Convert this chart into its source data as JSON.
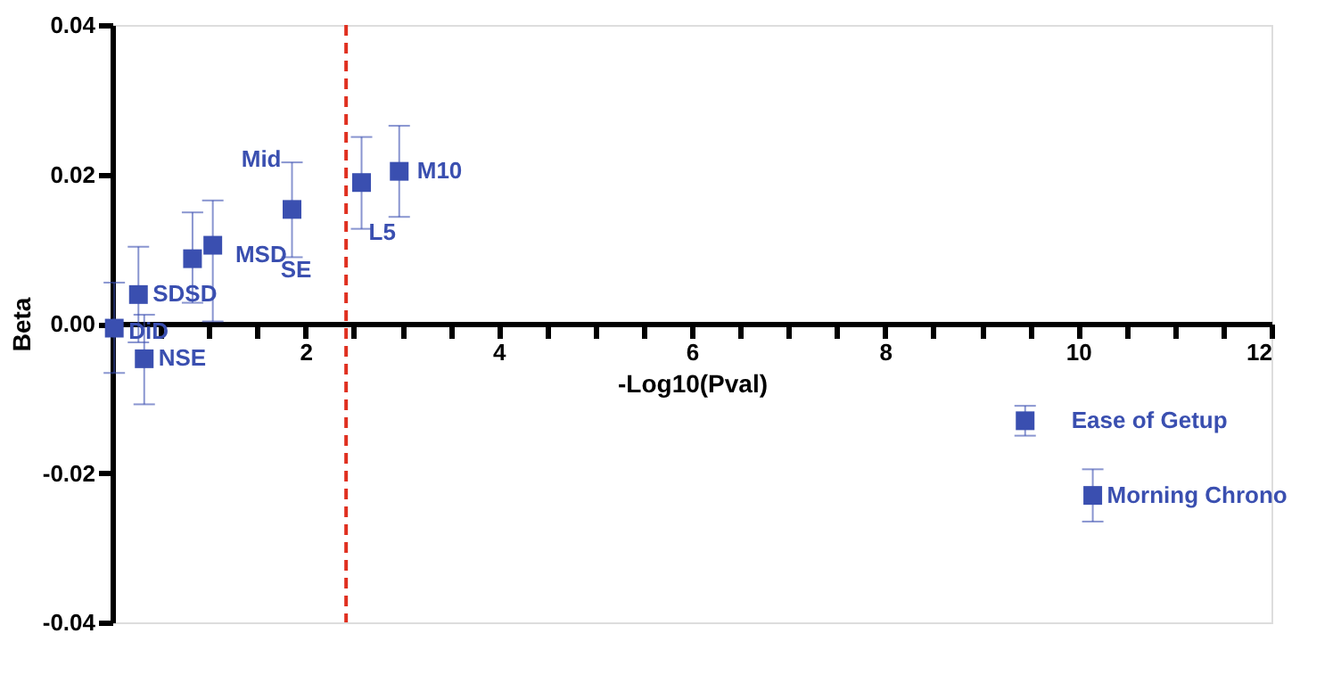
{
  "chart_data": {
    "type": "scatter",
    "xlabel": "-Log10(Pval)",
    "ylabel": "Beta",
    "marker": "square",
    "xlim": [
      0,
      12
    ],
    "ylim": [
      -0.04,
      0.04
    ],
    "xticks": [
      {
        "value": 0,
        "label": null
      },
      {
        "value": 0.5,
        "label": null
      },
      {
        "value": 1,
        "label": null
      },
      {
        "value": 1.5,
        "label": null
      },
      2,
      {
        "value": 2.5,
        "label": null
      },
      {
        "value": 3,
        "label": null
      },
      {
        "value": 3.5,
        "label": null
      },
      4,
      {
        "value": 4.5,
        "label": null
      },
      {
        "value": 5,
        "label": null
      },
      {
        "value": 5.5,
        "label": null
      },
      6,
      {
        "value": 6.5,
        "label": null
      },
      {
        "value": 7,
        "label": null
      },
      {
        "value": 7.5,
        "label": null
      },
      8,
      {
        "value": 8.5,
        "label": null
      },
      {
        "value": 9,
        "label": null
      },
      {
        "value": 9.5,
        "label": null
      },
      10,
      {
        "value": 10.5,
        "label": null
      },
      {
        "value": 11,
        "label": null
      },
      {
        "value": 11.5,
        "label": null
      },
      12
    ],
    "yticks": [
      {
        "value": -0.04,
        "label": "-0.04"
      },
      {
        "value": -0.02,
        "label": "-0.02"
      },
      {
        "value": 0,
        "label": "0.00"
      },
      {
        "value": 0.02,
        "label": "0.02"
      },
      {
        "value": 0.04,
        "label": "0.04"
      }
    ],
    "series": [
      {
        "color": "#3a4fb0",
        "x": [
          0.02,
          0.27,
          0.33,
          0.83,
          1.04,
          1.86,
          2.58,
          2.97,
          9.45,
          10.15
        ],
        "values": [
          -0.0006,
          0.0039,
          -0.0047,
          0.0087,
          0.0105,
          0.0153,
          0.0189,
          0.0204,
          -0.013,
          -0.023
        ],
        "errors": [
          [
            -0.0066,
            0.0055
          ],
          [
            -0.0025,
            0.0103
          ],
          [
            -0.0108,
            0.0012
          ],
          [
            0.0028,
            0.0149
          ],
          [
            0.0003,
            0.0165
          ],
          [
            0.0089,
            0.0216
          ],
          [
            0.0127,
            0.025
          ],
          [
            0.0143,
            0.0265
          ],
          [
            -0.015,
            -0.011
          ],
          [
            -0.0265,
            -0.0195
          ]
        ]
      }
    ],
    "ref_lines": [
      {
        "axis": "x",
        "value": 2.42,
        "color": "#e03020",
        "line_style": "dashed"
      }
    ],
    "annotations": [
      {
        "text": "DiD",
        "x": 0.02,
        "y": -0.0006
      },
      {
        "text": "SDSD",
        "x": 0.27,
        "y": 0.0039
      },
      {
        "text": "NSE",
        "x": 0.33,
        "y": -0.0047
      },
      {
        "text": "MSD",
        "x": 0.83,
        "y": 0.0087
      },
      {
        "text": "SE",
        "x": 1.04,
        "y": 0.0105
      },
      {
        "text": "Mid",
        "x": 1.86,
        "y": 0.0153
      },
      {
        "text": "L5",
        "x": 2.58,
        "y": 0.0189
      },
      {
        "text": "M10",
        "x": 2.97,
        "y": 0.0204
      },
      {
        "text": "Ease of Getup",
        "x": 9.45,
        "y": -0.013
      },
      {
        "text": "Morning Chrono",
        "x": 10.15,
        "y": -0.023
      }
    ]
  }
}
